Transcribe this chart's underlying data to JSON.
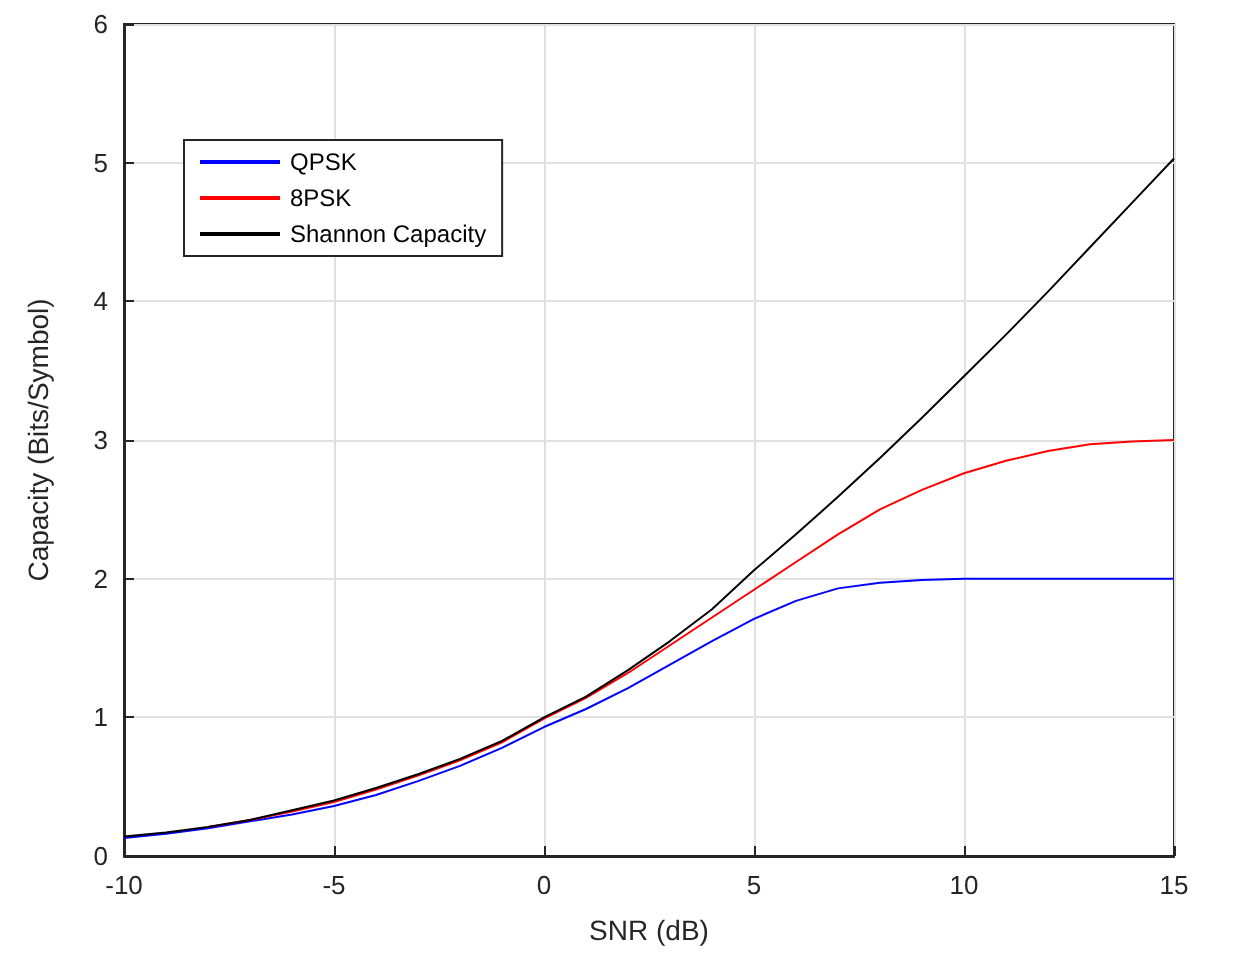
{
  "chart_data": {
    "type": "line",
    "xlabel": "SNR (dB)",
    "ylabel": "Capacity (Bits/Symbol)",
    "x": [
      -10,
      -9,
      -8,
      -7,
      -6,
      -5,
      -4,
      -3,
      -2,
      -1,
      0,
      1,
      2,
      3,
      4,
      5,
      6,
      7,
      8,
      9,
      10,
      11,
      12,
      13,
      14,
      15
    ],
    "series": [
      {
        "name": "QPSK",
        "color": "#0000ff",
        "values": [
          0.13,
          0.16,
          0.2,
          0.25,
          0.3,
          0.36,
          0.44,
          0.54,
          0.65,
          0.78,
          0.93,
          1.06,
          1.21,
          1.38,
          1.55,
          1.71,
          1.84,
          1.93,
          1.97,
          1.99,
          2.0,
          2.0,
          2.0,
          2.0,
          2.0,
          2.0
        ]
      },
      {
        "name": "8PSK",
        "color": "#ff0000",
        "values": [
          null,
          null,
          0.21,
          0.26,
          0.32,
          0.39,
          0.48,
          0.58,
          0.69,
          0.82,
          0.99,
          1.14,
          1.32,
          1.52,
          1.72,
          1.92,
          2.12,
          2.32,
          2.5,
          2.64,
          2.76,
          2.85,
          2.92,
          2.97,
          2.99,
          3.0
        ]
      },
      {
        "name": "Shannon Capacity",
        "color": "#000000",
        "values": [
          0.14,
          0.17,
          0.21,
          0.26,
          0.33,
          0.4,
          0.49,
          0.59,
          0.7,
          0.83,
          1.0,
          1.15,
          1.34,
          1.55,
          1.78,
          2.06,
          2.32,
          2.59,
          2.87,
          3.16,
          3.46,
          3.76,
          4.07,
          4.39,
          4.71,
          5.03
        ]
      }
    ],
    "xlim": [
      -10,
      15
    ],
    "xticks": [
      -10,
      -5,
      0,
      5,
      10,
      15
    ],
    "ylim": [
      0,
      6
    ],
    "yticks": [
      0,
      1,
      2,
      3,
      4,
      5,
      6
    ],
    "grid": true,
    "legend": "top left",
    "marker": "none",
    "line_style": "solid"
  }
}
